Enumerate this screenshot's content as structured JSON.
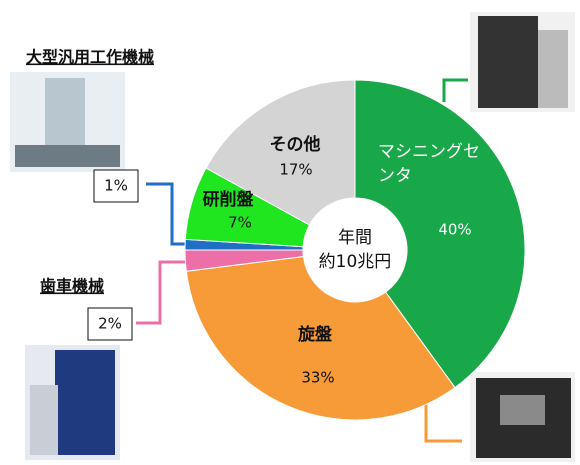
{
  "chart_data": {
    "type": "pie",
    "categories": [
      "マシニングセンタ",
      "旋盤",
      "歯車機械",
      "大型汎用工作機械",
      "研削盤",
      "その他"
    ],
    "values": [
      40,
      33,
      2,
      1,
      7,
      17
    ],
    "value_labels": [
      "40%",
      "33%",
      "2%",
      "1%",
      "7%",
      "17%"
    ],
    "colors": [
      "#18a84a",
      "#f79b38",
      "#ec6fa8",
      "#1f6fc4",
      "#1fe61f",
      "#d4d4d4"
    ],
    "center_text": [
      "年間",
      "約10兆円"
    ]
  }
}
